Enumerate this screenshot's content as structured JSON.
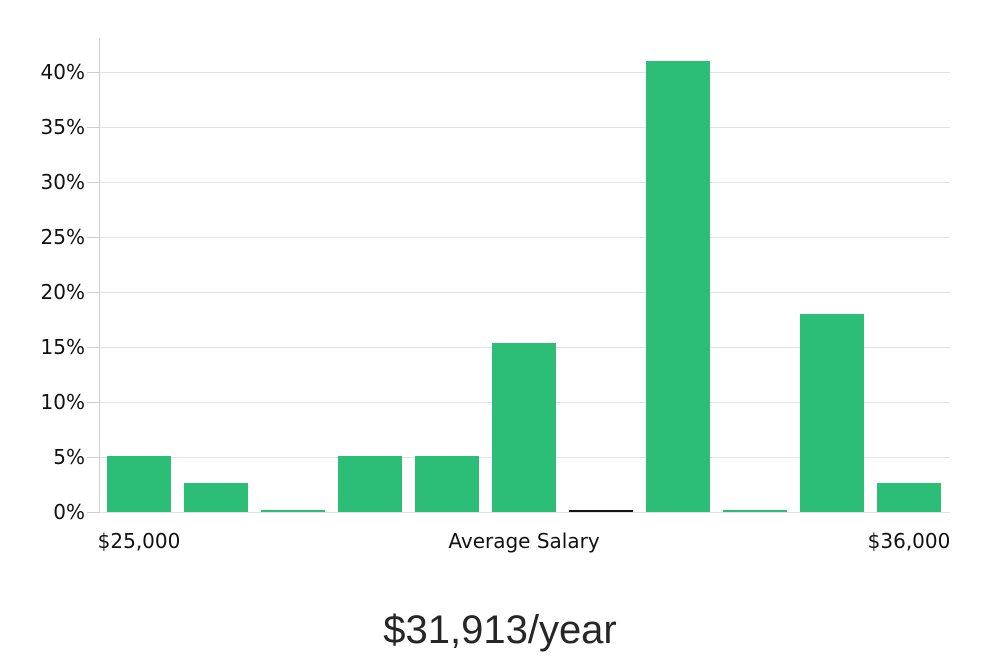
{
  "chart_data": {
    "type": "bar",
    "title": "$31,913/year",
    "xlabel": "",
    "ylabel": "",
    "ylim": [
      0,
      43.1
    ],
    "grid": true,
    "legend": false,
    "bar_color": "#2cbd77",
    "bar_color_overrides": {
      "6": "#141414"
    },
    "values": [
      5.1,
      2.6,
      0.1,
      5.1,
      5.1,
      15.4,
      0.2,
      41.0,
      0.1,
      18.0,
      2.6
    ],
    "y_ticks": [
      {
        "value": 0,
        "label": "0%"
      },
      {
        "value": 5,
        "label": "5%"
      },
      {
        "value": 10,
        "label": "10%"
      },
      {
        "value": 15,
        "label": "15%"
      },
      {
        "value": 20,
        "label": "20%"
      },
      {
        "value": 25,
        "label": "25%"
      },
      {
        "value": 30,
        "label": "30%"
      },
      {
        "value": 35,
        "label": "35%"
      },
      {
        "value": 40,
        "label": "40%"
      }
    ],
    "x_ticks": [
      {
        "bar_index": 0,
        "label": "$25,000"
      },
      {
        "bar_index": 5,
        "label": "Average Salary"
      },
      {
        "bar_index": 10,
        "label": "$36,000"
      }
    ],
    "colors": {
      "grid": "#e3e3e3",
      "axis": "#cfcfcf",
      "tick_text": "#111111",
      "title_text": "#262626",
      "background": "#ffffff"
    }
  }
}
